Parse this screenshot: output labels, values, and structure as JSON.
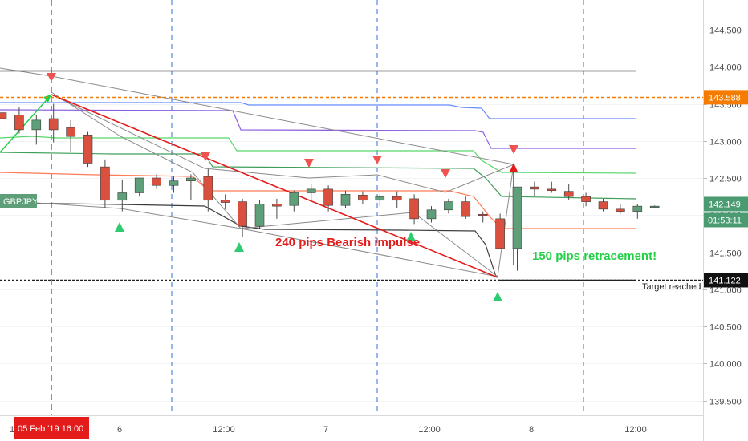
{
  "chart_data": {
    "type": "candlestick",
    "symbol": "GBPJPY",
    "ylim": [
      139.3,
      144.9
    ],
    "x_tick_labels": [
      "12",
      "6",
      "12:00",
      "7",
      "12:00",
      "8",
      "12:00"
    ],
    "y_tick_labels": [
      "139.500",
      "140.000",
      "140.500",
      "141.000",
      "141.500",
      "142.000",
      "142.500",
      "143.000",
      "143.500",
      "144.000",
      "144.500"
    ],
    "y_ticks": [
      139.5,
      140.0,
      140.5,
      141.0,
      141.5,
      142.0,
      142.5,
      143.0,
      143.5,
      144.0,
      144.5
    ],
    "candles": [
      {
        "o": 143.38,
        "h": 143.45,
        "l": 143.1,
        "c": 143.3
      },
      {
        "o": 143.35,
        "h": 143.45,
        "l": 143.1,
        "c": 143.15
      },
      {
        "o": 143.15,
        "h": 143.35,
        "l": 142.95,
        "c": 143.28
      },
      {
        "o": 143.3,
        "h": 143.5,
        "l": 142.98,
        "c": 143.15
      },
      {
        "o": 143.18,
        "h": 143.28,
        "l": 142.85,
        "c": 143.06
      },
      {
        "o": 143.08,
        "h": 143.12,
        "l": 142.65,
        "c": 142.7
      },
      {
        "o": 142.65,
        "h": 142.75,
        "l": 142.1,
        "c": 142.2
      },
      {
        "o": 142.2,
        "h": 142.48,
        "l": 142.05,
        "c": 142.3
      },
      {
        "o": 142.3,
        "h": 142.5,
        "l": 142.25,
        "c": 142.5
      },
      {
        "o": 142.5,
        "h": 142.55,
        "l": 142.35,
        "c": 142.4
      },
      {
        "o": 142.4,
        "h": 142.52,
        "l": 142.3,
        "c": 142.46
      },
      {
        "o": 142.46,
        "h": 142.55,
        "l": 142.2,
        "c": 142.5
      },
      {
        "o": 142.52,
        "h": 142.62,
        "l": 142.05,
        "c": 142.2
      },
      {
        "o": 142.2,
        "h": 142.28,
        "l": 142.08,
        "c": 142.17
      },
      {
        "o": 142.18,
        "h": 142.22,
        "l": 141.7,
        "c": 141.85
      },
      {
        "o": 141.85,
        "h": 142.2,
        "l": 141.82,
        "c": 142.15
      },
      {
        "o": 142.15,
        "h": 142.22,
        "l": 141.95,
        "c": 142.12
      },
      {
        "o": 142.13,
        "h": 142.33,
        "l": 142.05,
        "c": 142.3
      },
      {
        "o": 142.3,
        "h": 142.42,
        "l": 142.2,
        "c": 142.35
      },
      {
        "o": 142.35,
        "h": 142.4,
        "l": 142.05,
        "c": 142.13
      },
      {
        "o": 142.13,
        "h": 142.33,
        "l": 142.1,
        "c": 142.28
      },
      {
        "o": 142.27,
        "h": 142.32,
        "l": 142.15,
        "c": 142.2
      },
      {
        "o": 142.2,
        "h": 142.28,
        "l": 142.12,
        "c": 142.25
      },
      {
        "o": 142.25,
        "h": 142.32,
        "l": 142.1,
        "c": 142.2
      },
      {
        "o": 142.22,
        "h": 142.28,
        "l": 141.88,
        "c": 141.95
      },
      {
        "o": 141.95,
        "h": 142.12,
        "l": 141.9,
        "c": 142.07
      },
      {
        "o": 142.07,
        "h": 142.22,
        "l": 142.02,
        "c": 142.18
      },
      {
        "o": 142.18,
        "h": 142.25,
        "l": 141.95,
        "c": 141.98
      },
      {
        "o": 142.01,
        "h": 142.05,
        "l": 141.9,
        "c": 142.0
      },
      {
        "o": 141.95,
        "h": 142.02,
        "l": 141.55,
        "c": 141.55
      },
      {
        "o": 141.55,
        "h": 142.38,
        "l": 141.25,
        "c": 142.38
      },
      {
        "o": 142.38,
        "h": 142.45,
        "l": 142.25,
        "c": 142.35
      },
      {
        "o": 142.35,
        "h": 142.45,
        "l": 142.3,
        "c": 142.33
      },
      {
        "o": 142.32,
        "h": 142.42,
        "l": 142.2,
        "c": 142.25
      },
      {
        "o": 142.25,
        "h": 142.3,
        "l": 142.12,
        "c": 142.18
      },
      {
        "o": 142.18,
        "h": 142.22,
        "l": 142.05,
        "c": 142.08
      },
      {
        "o": 142.08,
        "h": 142.15,
        "l": 142.02,
        "c": 142.05
      },
      {
        "o": 142.05,
        "h": 142.15,
        "l": 141.95,
        "c": 142.12
      },
      {
        "o": 142.12,
        "h": 142.13,
        "l": 142.1,
        "c": 142.12
      }
    ],
    "horizontal_levels": [
      {
        "price": 143.95,
        "color": "#3b3b3b"
      },
      {
        "price": 143.588,
        "color": "#f57c00"
      },
      {
        "price": 141.122,
        "color": "#222222"
      }
    ],
    "price_tags": [
      {
        "price": 143.588,
        "label": "143.588",
        "bg": "#f57c00"
      },
      {
        "price": 142.149,
        "label": "142.149",
        "bg": "#4a9a72"
      },
      {
        "price": 141.122,
        "label": "141.122",
        "bg": "#111111"
      }
    ],
    "countdown": "01:53:11",
    "date_tag": "05 Feb '19   16:00",
    "annotations": {
      "impulse": "240 pips Bearish impulse",
      "retracement": "150 pips retracement!",
      "target": "Target reached"
    },
    "colors": {
      "up": "#5e9e78",
      "down": "#d9503e",
      "session_line": "#2f6fdb",
      "date_line": "#e31b1b",
      "impulse_line": "#e31b1b",
      "retrace_arrow": "#e31b1b",
      "green_annotation": "#22d046"
    }
  }
}
